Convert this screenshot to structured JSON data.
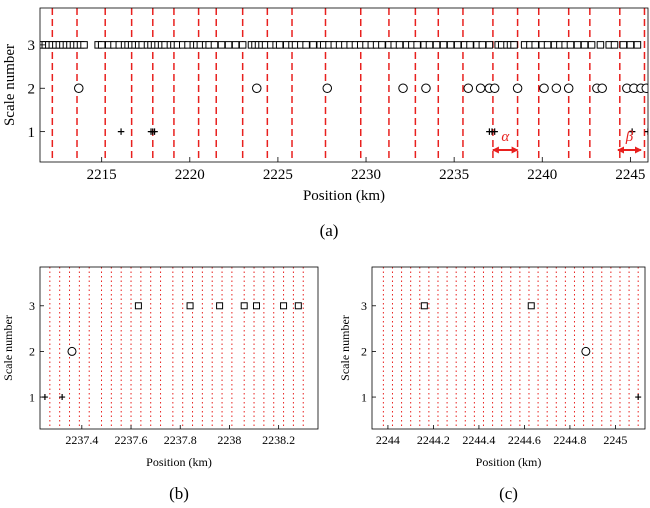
{
  "colors": {
    "grid_dashed": "#e8201e",
    "grid_dotted": "#e8201e",
    "annotation": "#e8201e",
    "marker": "#000000"
  },
  "chart_data": [
    {
      "id": "a",
      "caption": "(a)",
      "type": "scatter",
      "xlabel": "Position (km)",
      "ylabel": "Scale number",
      "xlim": [
        2211.5,
        2246
      ],
      "ylim": [
        0.3,
        3.85
      ],
      "xticks": [
        2215,
        2220,
        2225,
        2230,
        2235,
        2240,
        2245
      ],
      "xtick_labels": [
        "2215",
        "2220",
        "2225",
        "2230",
        "2235",
        "2240",
        "2245"
      ],
      "yticks": [
        1,
        2,
        3
      ],
      "ytick_labels": [
        "1",
        "2",
        "3"
      ],
      "vlines_style": "dashed",
      "vlines": [
        2212.2,
        2213.6,
        2215.2,
        2216.7,
        2217.9,
        2219.1,
        2220.5,
        2221.5,
        2223.0,
        2224.4,
        2225.8,
        2227.7,
        2229.7,
        2231.3,
        2232.8,
        2234.1,
        2235.5,
        2237.2,
        2238.6,
        2239.8,
        2241.5,
        2242.7,
        2244.4,
        2245.8
      ],
      "series": [
        {
          "marker": "square",
          "y": 3,
          "x": [
            2211.6,
            2211.8,
            2212.0,
            2212.2,
            2212.4,
            2212.6,
            2212.8,
            2213.0,
            2213.2,
            2213.4,
            2213.6,
            2213.8,
            2214.0,
            2214.8,
            2215.0,
            2215.4,
            2215.7,
            2216.0,
            2216.3,
            2216.5,
            2216.7,
            2216.9,
            2217.1,
            2217.3,
            2217.6,
            2217.8,
            2218.0,
            2218.2,
            2218.4,
            2218.6,
            2218.9,
            2219.1,
            2219.3,
            2219.6,
            2219.9,
            2220.2,
            2220.4,
            2220.6,
            2220.9,
            2221.1,
            2221.4,
            2221.8,
            2222.2,
            2222.6,
            2223.0,
            2223.5,
            2223.7,
            2223.9,
            2224.1,
            2224.3,
            2224.6,
            2224.9,
            2225.1,
            2225.5,
            2225.8,
            2226.0,
            2226.3,
            2226.6,
            2227.0,
            2227.4,
            2227.6,
            2227.9,
            2228.2,
            2228.5,
            2228.8,
            2229.1,
            2229.4,
            2229.7,
            2230.0,
            2230.3,
            2230.6,
            2230.9,
            2231.3,
            2231.6,
            2231.9,
            2232.3,
            2232.6,
            2232.9,
            2233.3,
            2233.6,
            2234.0,
            2234.4,
            2234.8,
            2235.2,
            2235.6,
            2235.9,
            2236.3,
            2236.6,
            2237.0,
            2237.5,
            2237.7,
            2238.0,
            2238.2,
            2238.4,
            2239.0,
            2239.3,
            2239.6,
            2240.0,
            2240.3,
            2240.7,
            2241.0,
            2241.3,
            2241.6,
            2242.0,
            2242.4,
            2242.8,
            2243.3,
            2243.8,
            2244.1,
            2244.6,
            2245.0,
            2245.4
          ]
        },
        {
          "marker": "circle",
          "y": 2,
          "x": [
            2213.7,
            2223.8,
            2227.8,
            2232.1,
            2233.4,
            2235.8,
            2236.5,
            2237.0,
            2237.3,
            2238.6,
            2240.1,
            2240.8,
            2241.5,
            2243.1,
            2243.4,
            2244.8,
            2245.2,
            2245.6,
            2245.9
          ]
        },
        {
          "marker": "plus",
          "y": 1,
          "x": [
            2216.1,
            2217.8,
            2217.9,
            2218.0,
            2237.0,
            2237.15,
            2237.3,
            2245.1,
            2246.0
          ]
        }
      ],
      "annotations": [
        {
          "symbol": "α",
          "from": 2237.2,
          "to": 2238.6
        },
        {
          "symbol": "β",
          "from": 2244.3,
          "to": 2245.6
        }
      ]
    },
    {
      "id": "b",
      "caption": "(b)",
      "type": "scatter",
      "xlabel": "Position (km)",
      "ylabel": "Scale number",
      "xlim": [
        2237.23,
        2238.36
      ],
      "ylim": [
        0.3,
        3.85
      ],
      "xticks": [
        2237.4,
        2237.6,
        2237.8,
        2238,
        2238.2
      ],
      "xtick_labels": [
        "2237.4",
        "2237.6",
        "2237.8",
        "2238",
        "2238.2"
      ],
      "yticks": [
        1,
        2,
        3
      ],
      "ytick_labels": [
        "1",
        "2",
        "3"
      ],
      "vlines_style": "dotted",
      "vlines": [
        2237.27,
        2237.31,
        2237.35,
        2237.39,
        2237.43,
        2237.48,
        2237.52,
        2237.56,
        2237.6,
        2237.64,
        2237.68,
        2237.72,
        2237.77,
        2237.81,
        2237.85,
        2237.89,
        2237.93,
        2237.97,
        2238.01,
        2238.06,
        2238.1,
        2238.14,
        2238.18,
        2238.22,
        2238.26,
        2238.3
      ],
      "series": [
        {
          "marker": "square",
          "y": 3,
          "x": [
            2237.63,
            2237.84,
            2237.96,
            2238.06,
            2238.11,
            2238.22,
            2238.28
          ]
        },
        {
          "marker": "circle",
          "y": 2,
          "x": [
            2237.36
          ]
        },
        {
          "marker": "plus",
          "y": 1,
          "x": [
            2237.25,
            2237.32
          ]
        }
      ]
    },
    {
      "id": "c",
      "caption": "(c)",
      "type": "scatter",
      "xlabel": "Position (km)",
      "ylabel": "Scale number",
      "xlim": [
        2243.93,
        2245.13
      ],
      "ylim": [
        0.3,
        3.85
      ],
      "xticks": [
        2244,
        2244.2,
        2244.4,
        2244.6,
        2244.8,
        2245
      ],
      "xtick_labels": [
        "2244",
        "2244.2",
        "2244.4",
        "2244.6",
        "2244.8",
        "2245"
      ],
      "yticks": [
        1,
        2,
        3
      ],
      "ytick_labels": [
        "1",
        "2",
        "3"
      ],
      "vlines_style": "dotted",
      "vlines": [
        2243.98,
        2244.02,
        2244.06,
        2244.1,
        2244.14,
        2244.18,
        2244.22,
        2244.26,
        2244.3,
        2244.34,
        2244.38,
        2244.42,
        2244.46,
        2244.5,
        2244.54,
        2244.58,
        2244.62,
        2244.66,
        2244.7,
        2244.74,
        2244.78,
        2244.82,
        2244.86,
        2244.9,
        2244.94,
        2244.98,
        2245.02,
        2245.06,
        2245.1
      ],
      "series": [
        {
          "marker": "square",
          "y": 3,
          "x": [
            2244.16,
            2244.63
          ]
        },
        {
          "marker": "circle",
          "y": 2,
          "x": [
            2244.87
          ]
        },
        {
          "marker": "plus",
          "y": 1,
          "x": [
            2245.1
          ]
        }
      ]
    }
  ]
}
